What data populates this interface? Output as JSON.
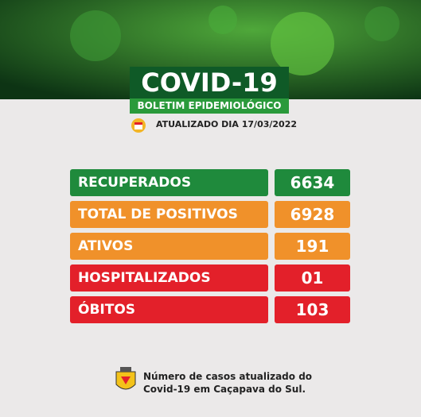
{
  "header": {
    "title": "COVID-19",
    "subtitle": "BOLETIM EPIDEMIOLÓGICO",
    "updated": "ATUALIZADO DIA 17/03/2022"
  },
  "rows": [
    {
      "label": "RECUPERADOS",
      "value": "6634",
      "color": "#1f8a3c"
    },
    {
      "label": "TOTAL DE POSITIVOS",
      "value": "6928",
      "color": "#f0912a"
    },
    {
      "label": "ATIVOS",
      "value": "191",
      "color": "#f0912a"
    },
    {
      "label": "HOSPITALIZADOS",
      "value": "01",
      "color": "#e3202a"
    },
    {
      "label": "ÓBITOS",
      "value": "103",
      "color": "#e3202a"
    }
  ],
  "footer": {
    "line1": "Número de casos atualizado do",
    "line2": "Covid-19 em Caçapava do Sul."
  }
}
